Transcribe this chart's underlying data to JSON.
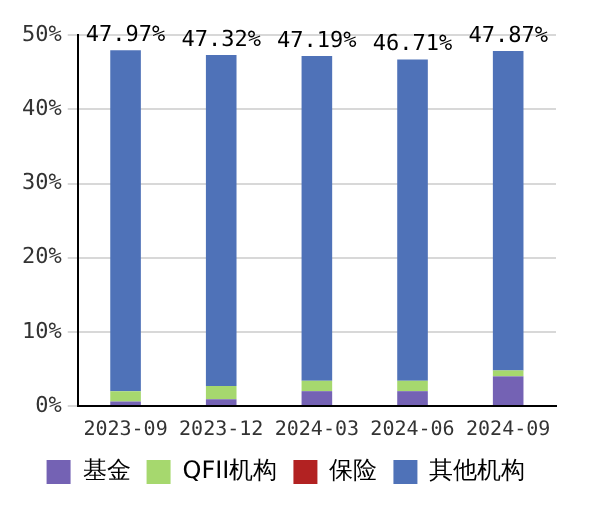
{
  "chart_data": {
    "type": "bar",
    "stacked": true,
    "categories": [
      "2023-09",
      "2023-12",
      "2024-03",
      "2024-06",
      "2024-09"
    ],
    "series": [
      {
        "name": "基金",
        "color": "#7462b4",
        "values": [
          0.6,
          0.9,
          2.0,
          2.0,
          4.0
        ]
      },
      {
        "name": "QFII机构",
        "color": "#a6d86e",
        "values": [
          1.4,
          1.8,
          1.4,
          1.4,
          0.8
        ]
      },
      {
        "name": "保险",
        "color": "#b22222",
        "values": [
          0,
          0,
          0,
          0,
          0
        ]
      },
      {
        "name": "其他机构",
        "color": "#4f72b8",
        "values": [
          45.97,
          44.62,
          43.79,
          43.31,
          43.07
        ]
      }
    ],
    "totals": [
      "47.97%",
      "47.32%",
      "47.19%",
      "46.71%",
      "47.87%"
    ],
    "ylim": [
      0,
      50
    ],
    "yticks": [
      {
        "value": 0,
        "label": "0%"
      },
      {
        "value": 10,
        "label": "10%"
      },
      {
        "value": 20,
        "label": "20%"
      },
      {
        "value": 30,
        "label": "30%"
      },
      {
        "value": 40,
        "label": "40%"
      },
      {
        "value": 50,
        "label": "50%"
      }
    ],
    "grid": "y",
    "legend": "bottom"
  }
}
